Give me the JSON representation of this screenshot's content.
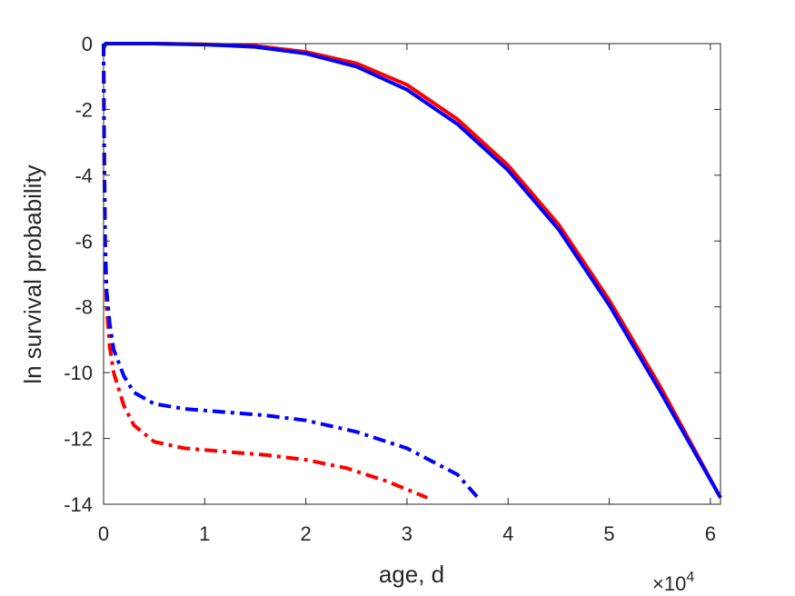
{
  "chart_data": {
    "type": "line",
    "xlabel": "age, d",
    "ylabel": "ln survival probability",
    "x_multiplier": "×10",
    "x_multiplier_exponent": "4",
    "xlim": [
      0,
      61000
    ],
    "ylim": [
      -14,
      0
    ],
    "xticks": [
      0,
      10000,
      20000,
      30000,
      40000,
      50000,
      60000
    ],
    "xtick_labels": [
      "0",
      "1",
      "2",
      "3",
      "4",
      "5",
      "6"
    ],
    "yticks": [
      0,
      -2,
      -4,
      -6,
      -8,
      -10,
      -12,
      -14
    ],
    "ytick_labels": [
      "0",
      "-2",
      "-4",
      "-6",
      "-8",
      "-10",
      "-12",
      "-14"
    ],
    "grid": false,
    "series": [
      {
        "color": "#ff0000",
        "style": "solid",
        "x": [
          0,
          200,
          5000,
          10000,
          15000,
          20000,
          25000,
          30000,
          35000,
          40000,
          45000,
          50000,
          55000,
          61000
        ],
        "y": [
          -0.15,
          0,
          0,
          -0.02,
          -0.07,
          -0.25,
          -0.6,
          -1.25,
          -2.3,
          -3.7,
          -5.5,
          -7.8,
          -10.4,
          -13.8
        ]
      },
      {
        "color": "#0000ff",
        "style": "solid",
        "x": [
          0,
          200,
          5000,
          10000,
          15000,
          20000,
          25000,
          30000,
          35000,
          40000,
          45000,
          50000,
          55000,
          61000
        ],
        "y": [
          -0.15,
          0,
          0,
          -0.03,
          -0.1,
          -0.3,
          -0.7,
          -1.4,
          -2.45,
          -3.85,
          -5.65,
          -7.95,
          -10.55,
          -13.8
        ]
      },
      {
        "color": "#ff0000",
        "style": "dashdot",
        "x": [
          0,
          50,
          150,
          300,
          600,
          1000,
          2000,
          3000,
          5000,
          8000,
          12000,
          16000,
          20000,
          24000,
          28000,
          32000
        ],
        "y": [
          0,
          -3,
          -6,
          -8,
          -9.2,
          -10,
          -11,
          -11.6,
          -12.1,
          -12.3,
          -12.4,
          -12.5,
          -12.65,
          -12.9,
          -13.3,
          -13.8
        ]
      },
      {
        "color": "#0000ff",
        "style": "dashdot",
        "x": [
          0,
          50,
          150,
          300,
          600,
          1000,
          2000,
          3000,
          5000,
          8000,
          12000,
          16000,
          20000,
          25000,
          30000,
          35000,
          37000
        ],
        "y": [
          0,
          -3,
          -6,
          -7.5,
          -8.5,
          -9.3,
          -10.1,
          -10.6,
          -10.95,
          -11.1,
          -11.2,
          -11.3,
          -11.45,
          -11.8,
          -12.3,
          -13.1,
          -13.8
        ]
      }
    ]
  }
}
